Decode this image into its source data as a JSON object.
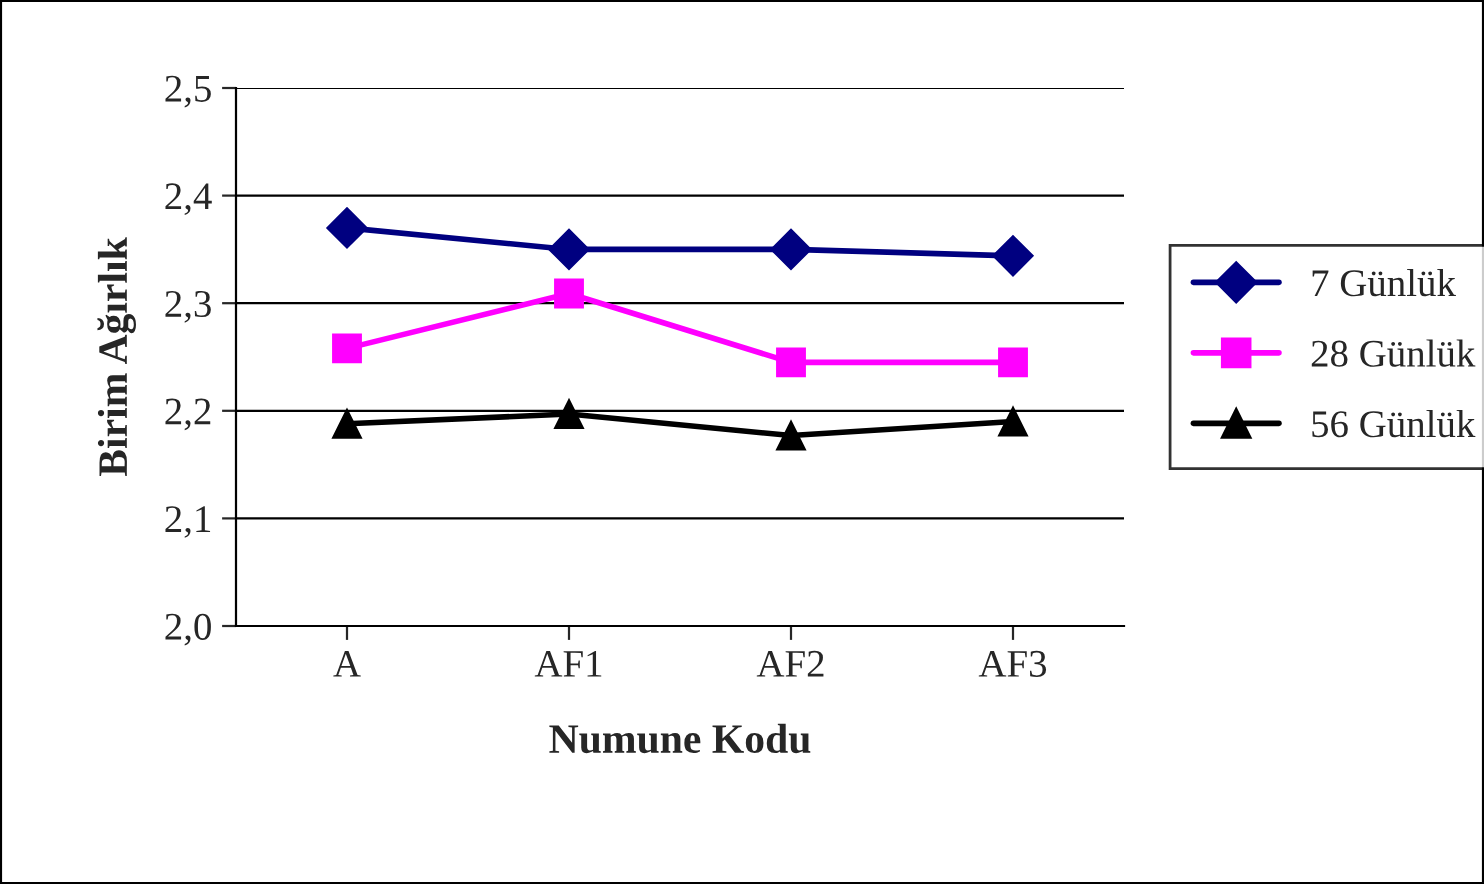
{
  "chart_data": {
    "type": "line",
    "xlabel": "Numune Kodu",
    "ylabel": "Birim Ağırlık",
    "categories": [
      "A",
      "AF1",
      "AF2",
      "AF3"
    ],
    "series": [
      {
        "name": "7 Günlük",
        "color": "#000080",
        "marker": "diamond",
        "values": [
          2.37,
          2.35,
          2.35,
          2.344
        ]
      },
      {
        "name": "28 Günlük",
        "color": "#ff00ff",
        "marker": "square",
        "values": [
          2.258,
          2.309,
          2.245,
          2.245
        ]
      },
      {
        "name": "56 Günlük",
        "color": "#000000",
        "marker": "triangle",
        "values": [
          2.188,
          2.197,
          2.177,
          2.19
        ]
      }
    ],
    "ylim": [
      2.0,
      2.5
    ],
    "yticks": [
      {
        "value": 2.0,
        "label": "2,0"
      },
      {
        "value": 2.1,
        "label": "2,1"
      },
      {
        "value": 2.2,
        "label": "2,2"
      },
      {
        "value": 2.3,
        "label": "2,3"
      },
      {
        "value": 2.4,
        "label": "2,4"
      },
      {
        "value": 2.5,
        "label": "2,5"
      }
    ],
    "grid": "y",
    "legend": "right",
    "line_style": "solid"
  }
}
